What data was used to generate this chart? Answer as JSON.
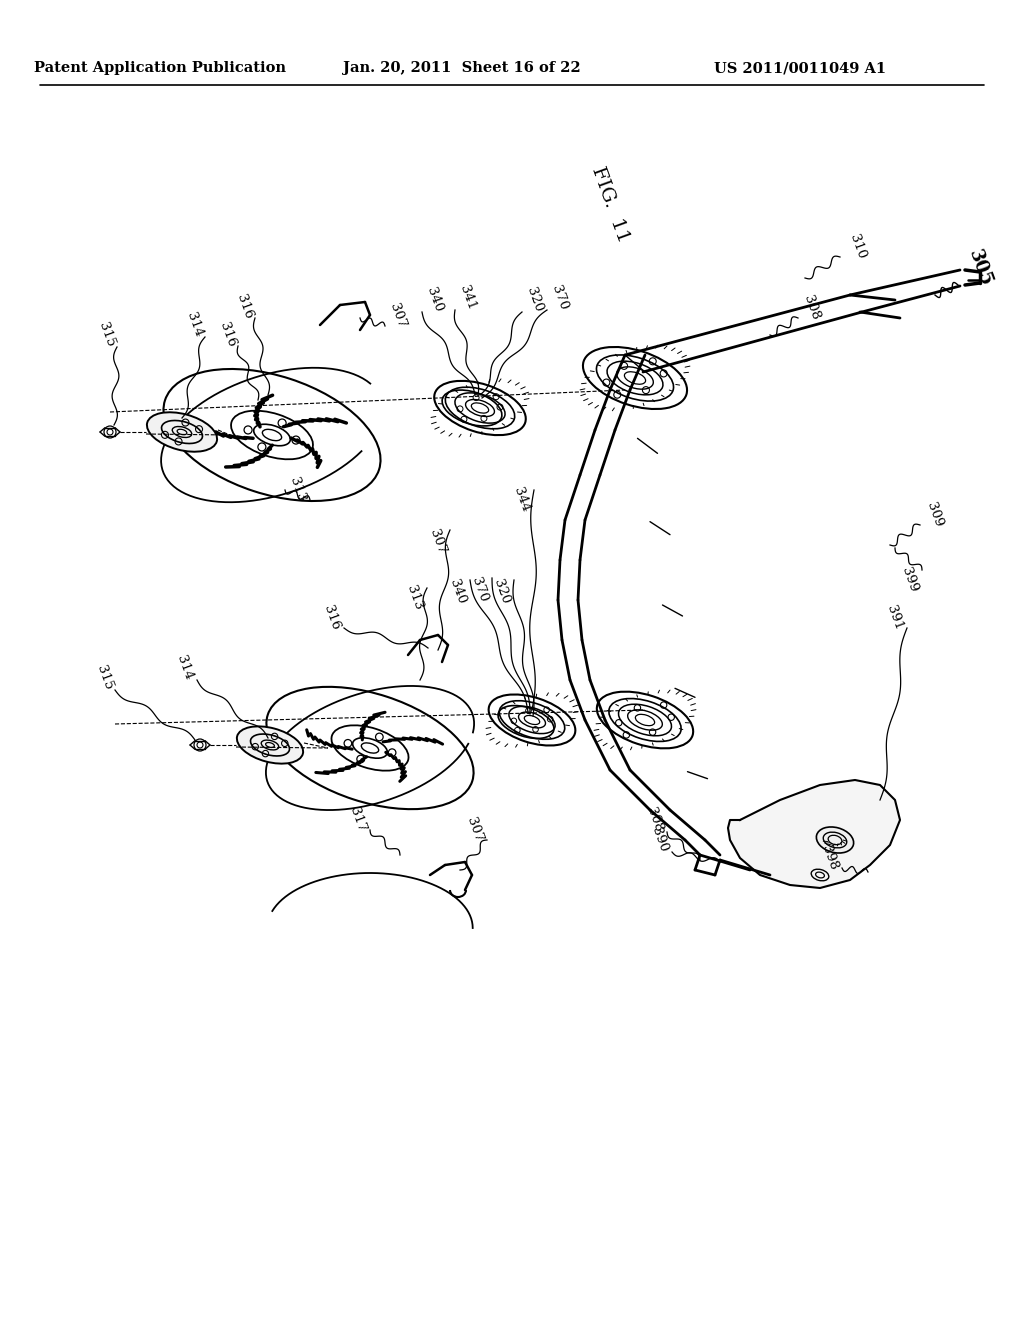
{
  "background_color": "#ffffff",
  "header_left": "Patent Application Publication",
  "header_center": "Jan. 20, 2011  Sheet 16 of 22",
  "header_right": "US 2011/0011049 A1",
  "figure_label": "FIG.  11",
  "line_color": "#000000",
  "text_color": "#000000",
  "font_size_header": 10.5,
  "font_size_label": 9.5,
  "font_size_figure": 13
}
